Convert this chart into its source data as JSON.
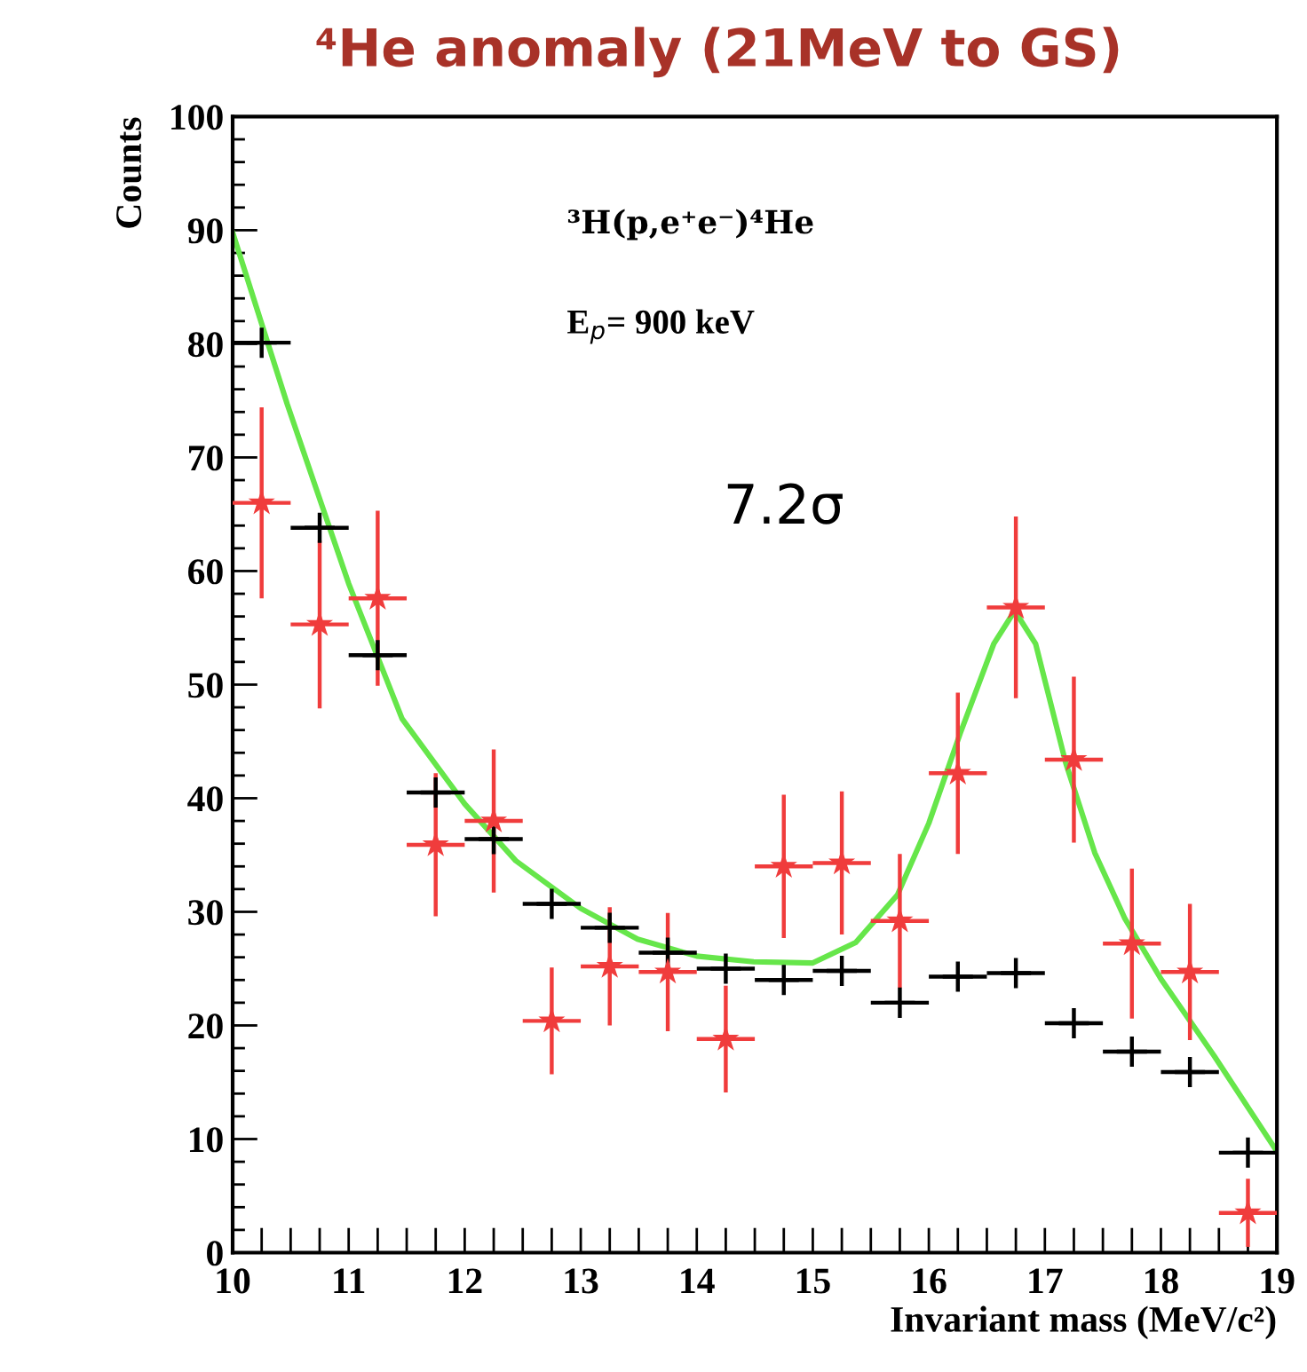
{
  "chart_data": {
    "type": "scatter",
    "title": "⁴He anomaly (21MeV to GS)",
    "xlabel": "Invariant mass (MeV/c²)",
    "ylabel": "Counts",
    "annotations": [
      "³H(p,e⁺e⁻)⁴He",
      "E$_{p}$= 900 keV",
      "7.2σ"
    ],
    "x": [
      10.25,
      10.75,
      11.25,
      11.75,
      12.25,
      12.75,
      13.25,
      13.75,
      14.25,
      14.75,
      15.25,
      15.75,
      16.25,
      16.75,
      17.25,
      17.75,
      18.25,
      18.75
    ],
    "series": [
      {
        "color": "#000000",
        "marker": "cross",
        "values": [
          80.1,
          63.8,
          52.6,
          40.5,
          36.4,
          30.7,
          28.6,
          26.4,
          25.0,
          24.0,
          24.8,
          22.0,
          24.3,
          24.6,
          20.2,
          17.7,
          15.9,
          8.8
        ],
        "xerrors": [
          0.25,
          0.25,
          0.25,
          0.25,
          0.25,
          0.25,
          0.25,
          0.25,
          0.25,
          0.25,
          0.25,
          0.25,
          0.25,
          0.25,
          0.25,
          0.25,
          0.25,
          0.25
        ]
      },
      {
        "color": "#f03c3c",
        "marker": "star",
        "values": [
          66.0,
          55.3,
          57.6,
          35.9,
          38.0,
          20.4,
          25.2,
          24.7,
          18.8,
          34.0,
          34.3,
          29.2,
          42.2,
          56.8,
          43.4,
          27.2,
          24.7,
          3.5
        ],
        "errors": [
          8.4,
          7.4,
          7.7,
          6.3,
          6.3,
          4.7,
          5.2,
          5.2,
          4.7,
          6.3,
          6.3,
          5.9,
          7.1,
          8.0,
          7.3,
          6.6,
          6.0,
          3.0
        ],
        "xerrors": [
          0.25,
          0.25,
          0.25,
          0.25,
          0.25,
          0.25,
          0.25,
          0.25,
          0.25,
          0.25,
          0.25,
          0.25,
          0.25,
          0.25,
          0.25,
          0.25,
          0.25,
          0.25
        ]
      },
      {
        "type": "line",
        "color": "#66e64a",
        "marker": "none",
        "line_style": "solid",
        "x": [
          10.0,
          10.47,
          11.0,
          11.46,
          12.0,
          12.44,
          13.0,
          13.49,
          14.0,
          14.49,
          15.0,
          15.37,
          15.73,
          16.0,
          16.27,
          16.56,
          16.74,
          16.92,
          17.18,
          17.43,
          17.69,
          18.0,
          18.46,
          19.0
        ],
        "values": [
          89.8,
          74.7,
          58.9,
          47.0,
          39.5,
          34.5,
          30.3,
          27.6,
          26.1,
          25.6,
          25.5,
          27.3,
          31.5,
          37.8,
          45.7,
          53.6,
          56.5,
          53.6,
          43.1,
          35.2,
          29.4,
          24.1,
          17.3,
          8.9
        ]
      }
    ],
    "xlim": [
      10,
      19
    ],
    "ylim": [
      0,
      100
    ],
    "xticks": [
      10,
      {
        "value": 10.25,
        "label": null
      },
      {
        "value": 10.5,
        "label": null
      },
      {
        "value": 10.75,
        "label": null
      },
      11,
      {
        "value": 11.25,
        "label": null
      },
      {
        "value": 11.5,
        "label": null
      },
      {
        "value": 11.75,
        "label": null
      },
      12,
      {
        "value": 12.25,
        "label": null
      },
      {
        "value": 12.5,
        "label": null
      },
      {
        "value": 12.75,
        "label": null
      },
      13,
      {
        "value": 13.25,
        "label": null
      },
      {
        "value": 13.5,
        "label": null
      },
      {
        "value": 13.75,
        "label": null
      },
      14,
      {
        "value": 14.25,
        "label": null
      },
      {
        "value": 14.5,
        "label": null
      },
      {
        "value": 14.75,
        "label": null
      },
      15,
      {
        "value": 15.25,
        "label": null
      },
      {
        "value": 15.5,
        "label": null
      },
      {
        "value": 15.75,
        "label": null
      },
      16,
      {
        "value": 16.25,
        "label": null
      },
      {
        "value": 16.5,
        "label": null
      },
      {
        "value": 16.75,
        "label": null
      },
      17,
      {
        "value": 17.25,
        "label": null
      },
      {
        "value": 17.5,
        "label": null
      },
      {
        "value": 17.75,
        "label": null
      },
      18,
      {
        "value": 18.25,
        "label": null
      },
      {
        "value": 18.5,
        "label": null
      },
      {
        "value": 18.75,
        "label": null
      },
      19
    ],
    "yticks": [
      0,
      {
        "value": 2,
        "label": null
      },
      {
        "value": 4,
        "label": null
      },
      {
        "value": 6,
        "label": null
      },
      {
        "value": 8,
        "label": null
      },
      10,
      {
        "value": 12,
        "label": null
      },
      {
        "value": 14,
        "label": null
      },
      {
        "value": 16,
        "label": null
      },
      {
        "value": 18,
        "label": null
      },
      20,
      {
        "value": 22,
        "label": null
      },
      {
        "value": 24,
        "label": null
      },
      {
        "value": 26,
        "label": null
      },
      {
        "value": 28,
        "label": null
      },
      30,
      {
        "value": 32,
        "label": null
      },
      {
        "value": 34,
        "label": null
      },
      {
        "value": 36,
        "label": null
      },
      {
        "value": 38,
        "label": null
      },
      40,
      {
        "value": 42,
        "label": null
      },
      {
        "value": 44,
        "label": null
      },
      {
        "value": 46,
        "label": null
      },
      {
        "value": 48,
        "label": null
      },
      50,
      {
        "value": 52,
        "label": null
      },
      {
        "value": 54,
        "label": null
      },
      {
        "value": 56,
        "label": null
      },
      {
        "value": 58,
        "label": null
      },
      60,
      {
        "value": 62,
        "label": null
      },
      {
        "value": 64,
        "label": null
      },
      {
        "value": 66,
        "label": null
      },
      {
        "value": 68,
        "label": null
      },
      70,
      {
        "value": 72,
        "label": null
      },
      {
        "value": 74,
        "label": null
      },
      {
        "value": 76,
        "label": null
      },
      {
        "value": 78,
        "label": null
      },
      80,
      {
        "value": 82,
        "label": null
      },
      {
        "value": 84,
        "label": null
      },
      {
        "value": 86,
        "label": null
      },
      {
        "value": 88,
        "label": null
      },
      90,
      {
        "value": 92,
        "label": null
      },
      {
        "value": 94,
        "label": null
      },
      {
        "value": 96,
        "label": null
      },
      {
        "value": 98,
        "label": null
      },
      100
    ],
    "grid": false,
    "legend": false
  }
}
